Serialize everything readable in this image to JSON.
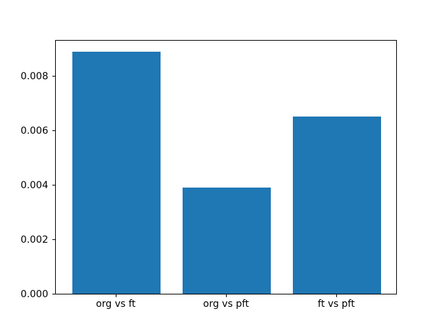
{
  "chart_data": {
    "type": "bar",
    "title": "",
    "xlabel": "",
    "ylabel": "",
    "categories": [
      "org vs ft",
      "org vs pft",
      "ft vs pft"
    ],
    "values": [
      0.0089,
      0.0039,
      0.0065
    ],
    "bar_color": "#1f77b4",
    "bar_width_units": 0.8,
    "xlim": [
      -0.55,
      2.55
    ],
    "ylim": [
      0,
      0.009345
    ],
    "yticks": [
      0.0,
      0.002,
      0.004,
      0.006,
      0.008
    ],
    "ytick_labels": [
      "0.000",
      "0.002",
      "0.004",
      "0.006",
      "0.008"
    ],
    "grid": false,
    "legend": null,
    "background_color": "#ffffff",
    "spine_color": "#000000"
  }
}
